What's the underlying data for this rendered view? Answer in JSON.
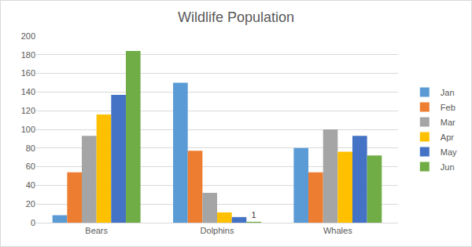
{
  "chart_data": {
    "type": "bar",
    "title": "Wildlife Population",
    "categories": [
      "Bears",
      "Dolphins",
      "Whales"
    ],
    "series": [
      {
        "name": "Jan",
        "color": "#5b9bd5",
        "values": [
          8,
          150,
          80
        ]
      },
      {
        "name": "Feb",
        "color": "#ed7d31",
        "values": [
          54,
          77,
          54
        ]
      },
      {
        "name": "Mar",
        "color": "#a5a5a5",
        "values": [
          93,
          32,
          100
        ]
      },
      {
        "name": "Apr",
        "color": "#ffc000",
        "values": [
          116,
          11,
          76
        ]
      },
      {
        "name": "May",
        "color": "#4472c4",
        "values": [
          137,
          6,
          93
        ]
      },
      {
        "name": "Jun",
        "color": "#70ad47",
        "values": [
          184,
          1,
          72
        ]
      }
    ],
    "annotations": [
      {
        "series": "Jun",
        "category": "Dolphins",
        "text": "1"
      }
    ],
    "ylim": [
      0,
      200
    ],
    "yticks": [
      0,
      20,
      40,
      60,
      80,
      100,
      120,
      140,
      160,
      180,
      200
    ],
    "grid": true,
    "legend": "right"
  }
}
